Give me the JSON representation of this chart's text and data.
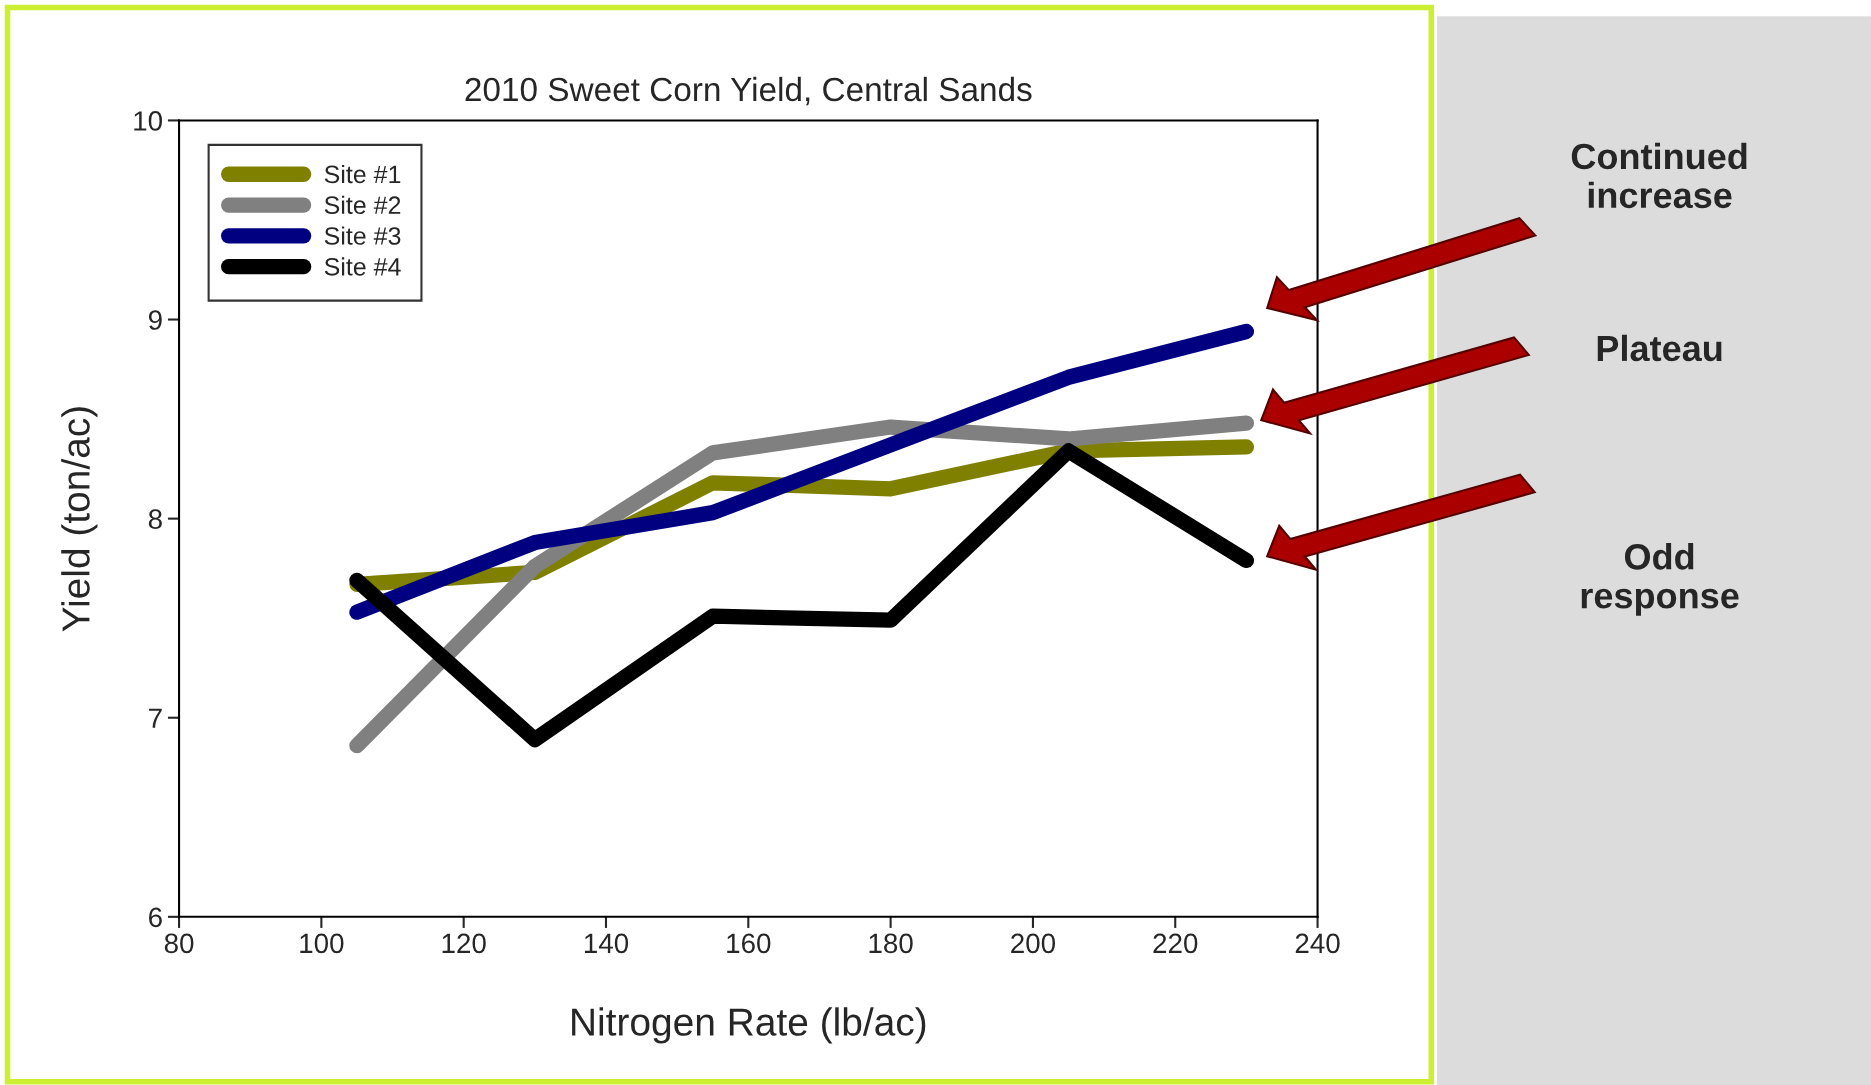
{
  "chart_data": {
    "type": "line",
    "title": "2010 Sweet Corn Yield, Central Sands",
    "xlabel": "Nitrogen Rate (lb/ac)",
    "ylabel": "Yield (ton/ac)",
    "x": [
      105,
      130,
      155,
      180,
      205,
      230
    ],
    "series": [
      {
        "name": "Site #1",
        "color": "#808000",
        "values": [
          7.67,
          7.73,
          8.18,
          8.15,
          8.34,
          8.36
        ]
      },
      {
        "name": "Site #2",
        "color": "#808080",
        "values": [
          6.86,
          7.76,
          8.33,
          8.46,
          8.4,
          8.48
        ]
      },
      {
        "name": "Site #3",
        "color": "#000080",
        "values": [
          7.53,
          7.88,
          8.03,
          8.37,
          8.71,
          8.94
        ]
      },
      {
        "name": "Site #4",
        "color": "#000000",
        "values": [
          7.69,
          6.89,
          7.51,
          7.49,
          8.34,
          7.79
        ]
      }
    ],
    "xlim": [
      80,
      240
    ],
    "xticks": [
      80,
      100,
      120,
      140,
      160,
      180,
      200,
      220,
      240
    ],
    "ylim": [
      6,
      10
    ],
    "yticks": [
      6,
      7,
      8,
      9,
      10
    ],
    "grid": false,
    "legend": "top left",
    "marker": "none",
    "line_style": "solid",
    "annotations": [
      "Continued\nincrease",
      "Plateau",
      "Odd\nresponse"
    ]
  }
}
